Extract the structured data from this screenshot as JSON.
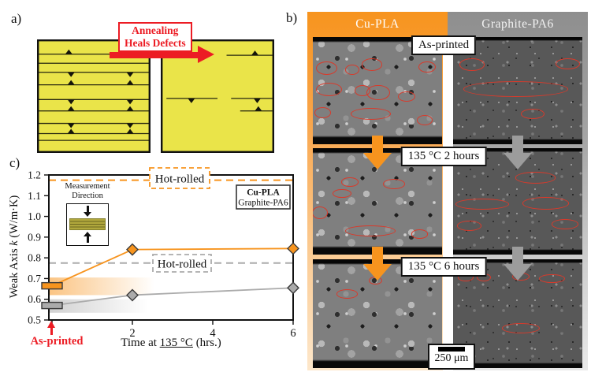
{
  "colors": {
    "orange": "#F7941E",
    "gray_header": "#929292",
    "red": "#EC1C24",
    "ellipse_red": "#D93A2B",
    "yellow": "#EAE449",
    "series_gray": "#ABABAB"
  },
  "panels": {
    "a_label": "a)",
    "b_label": "b)",
    "c_label": "c)"
  },
  "panel_a": {
    "annotation": {
      "line1": "Annealing",
      "line2": "Heals Defects"
    },
    "left_square_rows": [
      {
        "y": 13,
        "segs": [
          [
            0,
            100
          ]
        ],
        "tris": [
          {
            "x": 28,
            "d": "up"
          }
        ]
      },
      {
        "y": 21,
        "segs": [
          [
            0,
            100
          ]
        ],
        "tris": []
      },
      {
        "y": 29,
        "segs": [
          [
            0,
            100
          ]
        ],
        "tris": [
          {
            "x": 30,
            "d": "down"
          },
          {
            "x": 82,
            "d": "down"
          }
        ]
      },
      {
        "y": 40,
        "segs": [
          [
            0,
            100
          ]
        ],
        "tris": [
          {
            "x": 30,
            "d": "up"
          },
          {
            "x": 82,
            "d": "up"
          }
        ]
      },
      {
        "y": 53,
        "segs": [
          [
            0,
            100
          ]
        ],
        "tris": [
          {
            "x": 30,
            "d": "down"
          },
          {
            "x": 82,
            "d": "down"
          }
        ]
      },
      {
        "y": 63,
        "segs": [
          [
            0,
            100
          ]
        ],
        "tris": [
          {
            "x": 30,
            "d": "up"
          },
          {
            "x": 82,
            "d": "up"
          }
        ]
      },
      {
        "y": 74,
        "segs": [
          [
            0,
            100
          ]
        ],
        "tris": [
          {
            "x": 30,
            "d": "down"
          },
          {
            "x": 82,
            "d": "down"
          }
        ]
      },
      {
        "y": 83,
        "segs": [
          [
            0,
            100
          ]
        ],
        "tris": [
          {
            "x": 30,
            "d": "up"
          },
          {
            "x": 82,
            "d": "up"
          }
        ]
      },
      {
        "y": 89,
        "segs": [
          [
            0,
            100
          ]
        ],
        "tris": []
      }
    ],
    "right_square_rows": [
      {
        "y": 14,
        "segs": [
          [
            58,
            100
          ]
        ],
        "tris": [
          {
            "x": 83,
            "d": "up"
          }
        ]
      },
      {
        "y": 52,
        "segs": [
          [
            5,
            50
          ],
          [
            62,
            100
          ]
        ],
        "tris": [
          {
            "x": 27,
            "d": "down"
          },
          {
            "x": 85,
            "d": "down"
          }
        ]
      },
      {
        "y": 63,
        "segs": [
          [
            70,
            100
          ]
        ],
        "tris": [
          {
            "x": 86,
            "d": "up"
          }
        ]
      }
    ]
  },
  "panel_b": {
    "column_headers": [
      "Cu-PLA",
      "Graphite-PA6"
    ],
    "stage_labels": [
      "As-printed",
      "135 °C 2 hours",
      "135 °C 6 hours"
    ],
    "scale_bar_label": "250 μm",
    "images": [
      {
        "col": 0,
        "row": 0,
        "ellipses": [
          [
            10,
            28,
            15,
            11
          ],
          [
            45,
            25,
            15,
            10
          ],
          [
            30,
            30,
            10,
            8
          ],
          [
            88,
            27,
            12,
            9
          ],
          [
            12,
            48,
            19,
            11
          ],
          [
            50,
            51,
            17,
            13
          ],
          [
            38,
            49,
            11,
            9
          ],
          [
            72,
            55,
            12,
            8
          ],
          [
            7,
            70,
            12,
            9
          ],
          [
            44,
            71,
            30,
            10
          ],
          [
            86,
            77,
            11,
            8
          ]
        ]
      },
      {
        "col": 1,
        "row": 0,
        "ellipses": [
          [
            14,
            25,
            18,
            10
          ],
          [
            88,
            24,
            18,
            9
          ],
          [
            48,
            48,
            80,
            13
          ],
          [
            61,
            71,
            17,
            8
          ]
        ]
      },
      {
        "col": 0,
        "row": 1,
        "ellipses": [
          [
            28,
            31,
            12,
            7
          ],
          [
            62,
            33,
            16,
            8
          ],
          [
            22,
            42,
            13,
            7
          ],
          [
            5,
            60,
            11,
            10
          ],
          [
            44,
            77,
            38,
            9
          ],
          [
            82,
            80,
            12,
            7
          ]
        ]
      },
      {
        "col": 1,
        "row": 1,
        "ellipses": [
          [
            63,
            27,
            30,
            9
          ],
          [
            22,
            52,
            40,
            9
          ],
          [
            71,
            51,
            35,
            10
          ],
          [
            12,
            72,
            18,
            8
          ],
          [
            86,
            71,
            20,
            8
          ]
        ]
      },
      {
        "col": 0,
        "row": 2,
        "ellipses": [
          [
            48,
            19,
            9,
            6
          ],
          [
            26,
            31,
            15,
            7
          ]
        ]
      },
      {
        "col": 1,
        "row": 2,
        "ellipses": [
          [
            9,
            16,
            11,
            6
          ],
          [
            23,
            16,
            10,
            6
          ],
          [
            52,
            15,
            12,
            6
          ],
          [
            76,
            17,
            19,
            7
          ],
          [
            52,
            63,
            28,
            8
          ]
        ]
      }
    ]
  },
  "chart_data": {
    "type": "line",
    "xlabel_parts": {
      "pre": "Time at ",
      "underlined": "135 °C",
      "post": " (hrs.)"
    },
    "ylabel_parts": {
      "pre": "Weak Axis ",
      "italic": "k",
      "post": " (W/m·K)"
    },
    "xlim": [
      0,
      6
    ],
    "ylim": [
      0.5,
      1.2
    ],
    "xticks": [
      0,
      2,
      4,
      6
    ],
    "xtick_labels": [
      {
        "value": 2,
        "label": "2"
      },
      {
        "value": 4,
        "label": "4"
      },
      {
        "value": 6,
        "label": "6"
      }
    ],
    "yticks": [
      "0.5",
      "0.6",
      "0.7",
      "0.8",
      "0.9",
      "1.0",
      "1.1",
      "1.2"
    ],
    "series": [
      {
        "name": "Cu-PLA",
        "color": "#F7941E",
        "x": [
          0,
          2,
          6
        ],
        "y": [
          0.665,
          0.84,
          0.845
        ],
        "hot_rolled": 1.175,
        "as_printed_band": [
          0.62,
          0.705
        ],
        "band_fade_width": 134
      },
      {
        "name": "Graphite-PA6",
        "color": "#ABABAB",
        "x": [
          0,
          2,
          6
        ],
        "y": [
          0.57,
          0.62,
          0.655
        ],
        "hot_rolled": 0.775,
        "as_printed_band": [
          0.535,
          0.6
        ],
        "band_fade_width": 126
      }
    ],
    "hot_rolled_label": "Hot-rolled",
    "as_printed_label": "As-printed",
    "legend": [
      "Cu-PLA",
      "Graphite-PA6"
    ],
    "legend_position": "top-right",
    "grid": false,
    "inset": {
      "title_line1": "Measurement",
      "title_line2": "Direction"
    }
  }
}
